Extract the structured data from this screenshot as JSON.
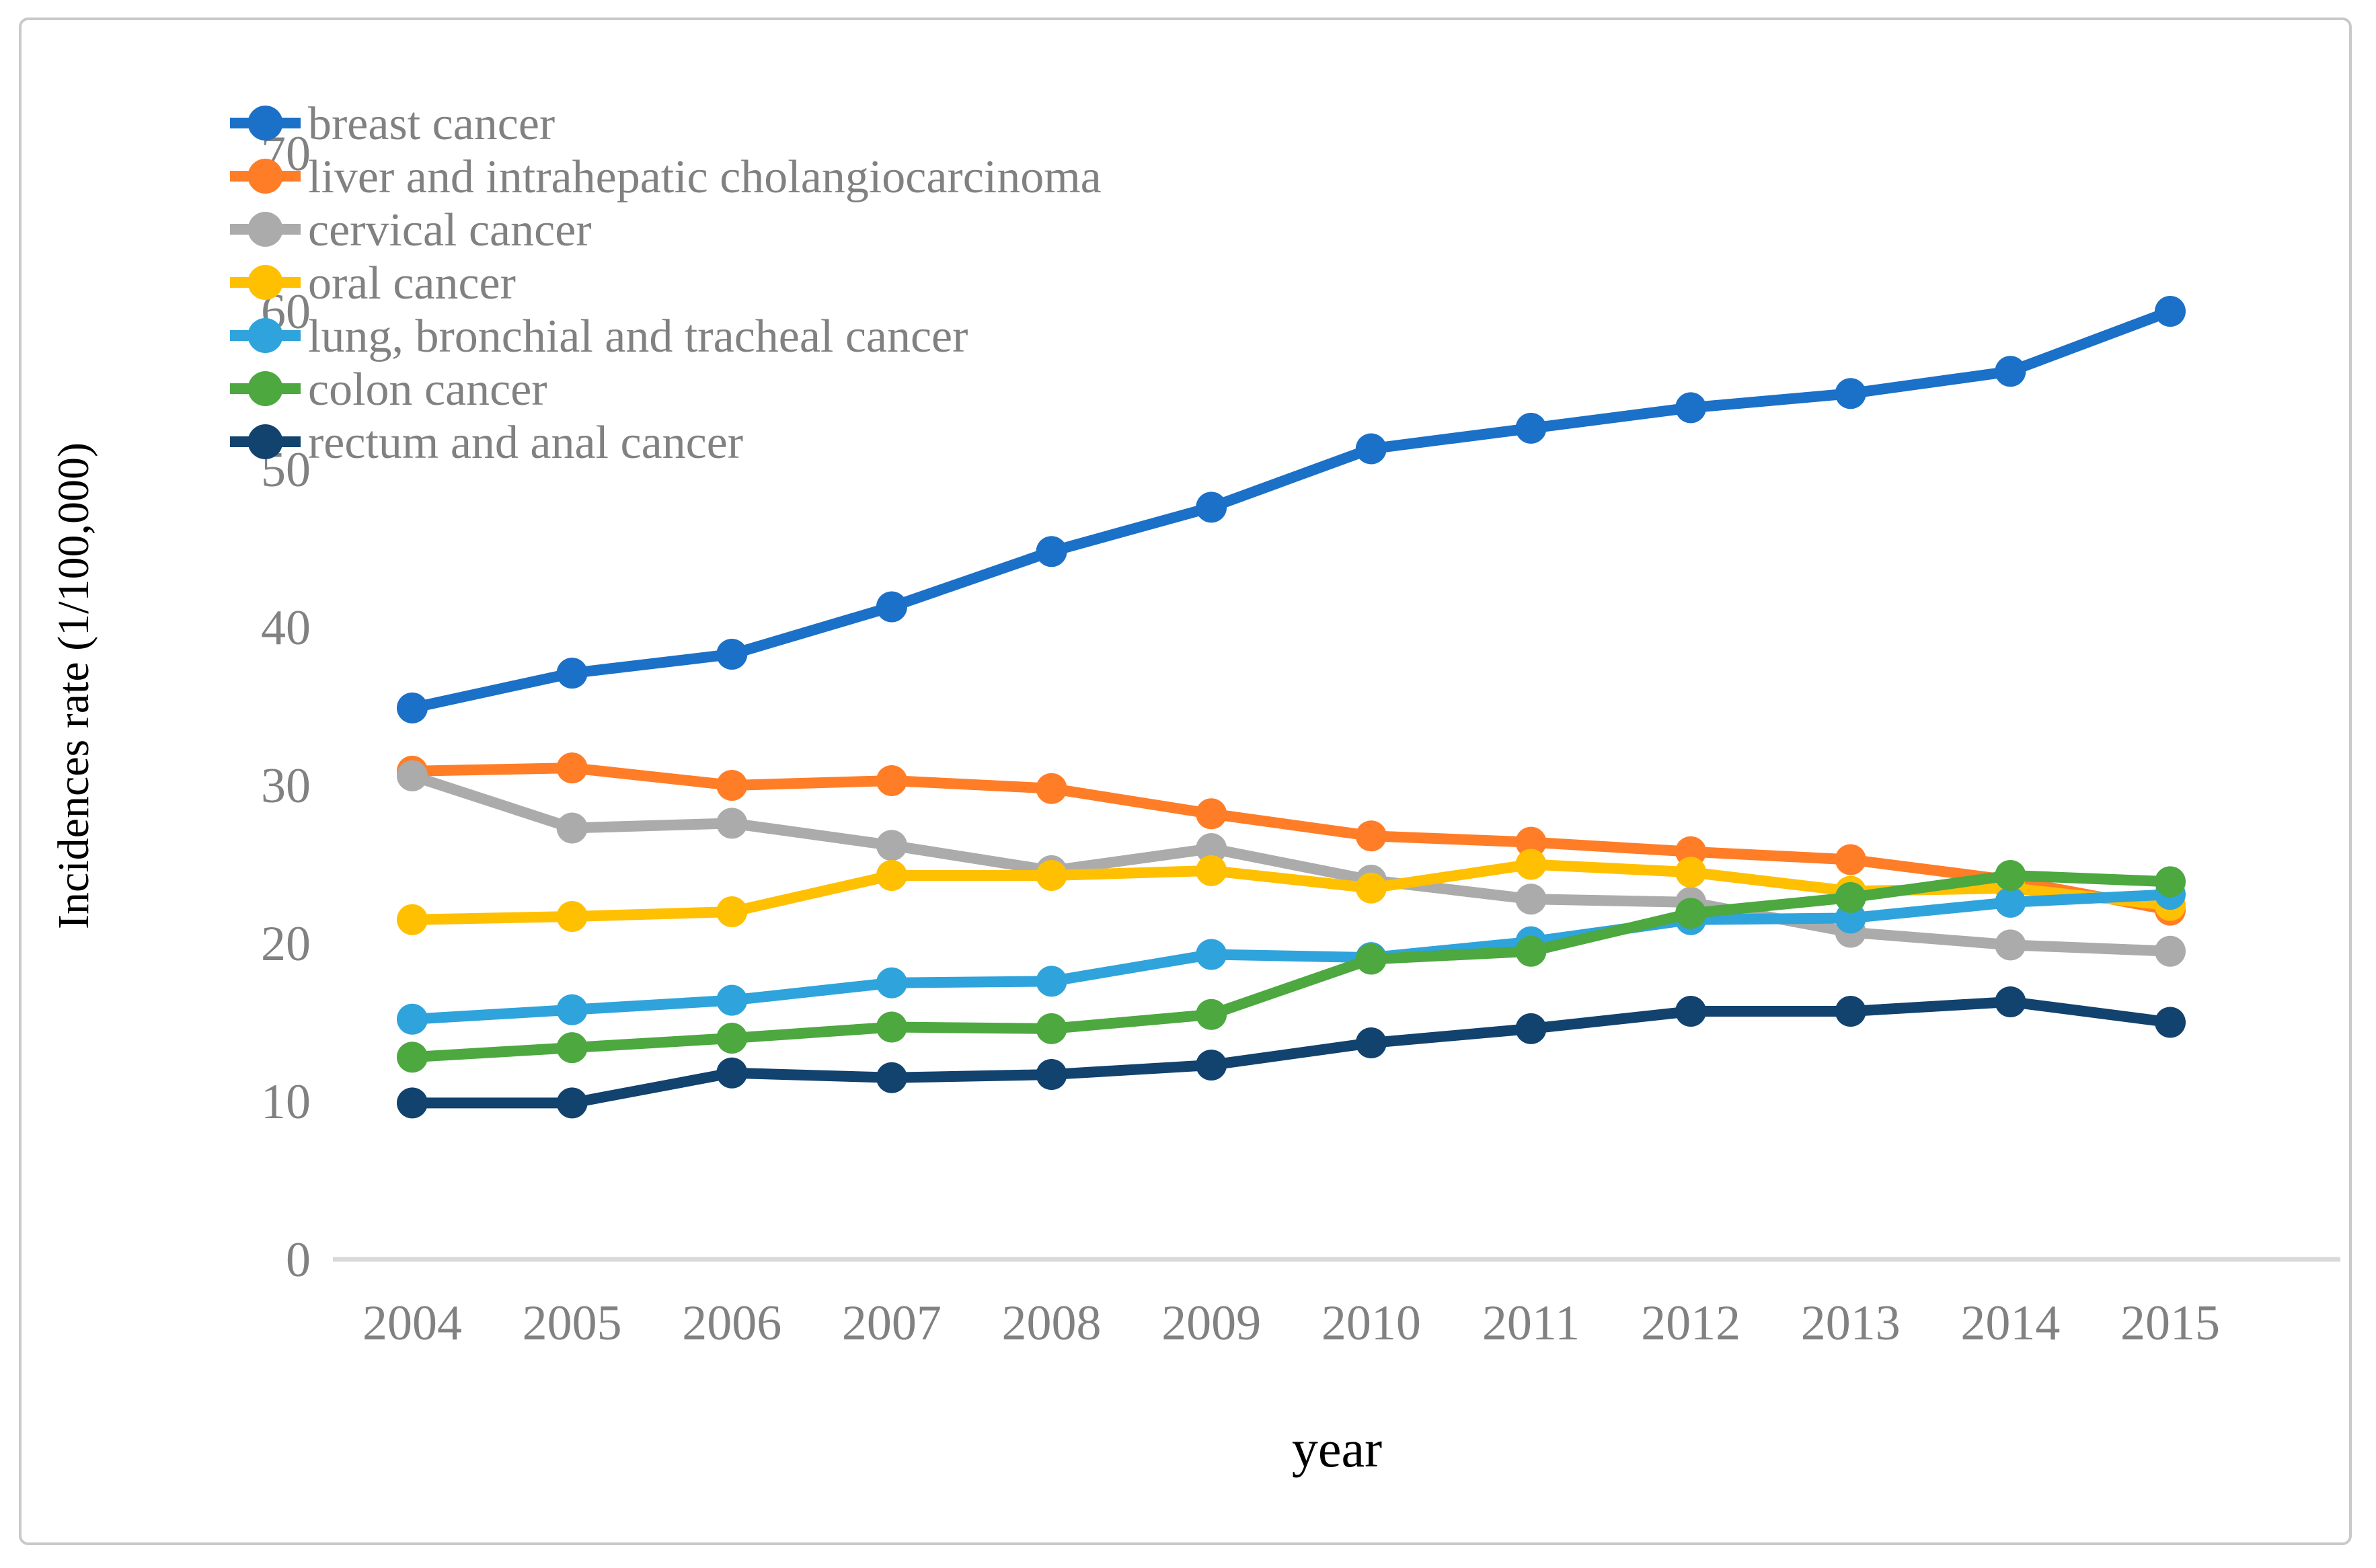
{
  "figure": {
    "background": "#ffffff",
    "border_color": "#c9c9c9",
    "axis_line_color": "#d9d9d9",
    "tick_text_color": "#818181",
    "title_text_color": "#000000"
  },
  "chart_data": {
    "type": "line",
    "title": "",
    "xlabel": "year",
    "ylabel": "Incidences rate (1/100,000)",
    "x": [
      "2004",
      "2005",
      "2006",
      "2007",
      "2008",
      "2009",
      "2010",
      "2011",
      "2012",
      "2013",
      "2014",
      "2015"
    ],
    "ylim": [
      0,
      70
    ],
    "ytick_step": 10,
    "grid": false,
    "legend_position": "top-left",
    "marker": "circle",
    "series": [
      {
        "name": "breast cancer",
        "color": "#1B70C7",
        "values": [
          34.9,
          37.1,
          38.3,
          41.3,
          44.8,
          47.6,
          51.3,
          52.6,
          53.9,
          54.8,
          56.2,
          60.0
        ]
      },
      {
        "name": "liver and intrahepatic cholangiocarcinoma",
        "color": "#FF7D27",
        "values": [
          30.9,
          31.1,
          30.0,
          30.3,
          29.8,
          28.2,
          26.8,
          26.4,
          25.8,
          25.3,
          24.0,
          22.1
        ]
      },
      {
        "name": "cervical cancer",
        "color": "#ABABAB",
        "values": [
          30.6,
          27.3,
          27.6,
          26.2,
          24.6,
          26.0,
          24.0,
          22.8,
          22.6,
          20.7,
          19.9,
          19.5
        ]
      },
      {
        "name": "oral cancer",
        "color": "#FFC002",
        "values": [
          21.5,
          21.7,
          22.0,
          24.3,
          24.3,
          24.6,
          23.5,
          25.0,
          24.5,
          23.3,
          23.5,
          22.4
        ]
      },
      {
        "name": "lung, bronchial and tracheal cancer",
        "color": "#2FA3DB",
        "values": [
          15.2,
          15.8,
          16.4,
          17.5,
          17.6,
          19.3,
          19.1,
          20.1,
          21.5,
          21.6,
          22.6,
          23.1
        ]
      },
      {
        "name": "colon cancer",
        "color": "#4CA83F",
        "values": [
          12.8,
          13.4,
          14.0,
          14.7,
          14.6,
          15.5,
          19.0,
          19.5,
          21.9,
          22.9,
          24.3,
          23.9
        ]
      },
      {
        "name": "rectum and anal cancer",
        "color": "#12426E",
        "values": [
          9.9,
          9.9,
          11.8,
          11.5,
          11.7,
          12.3,
          13.7,
          14.6,
          15.7,
          15.7,
          16.3,
          15.0
        ]
      }
    ]
  }
}
